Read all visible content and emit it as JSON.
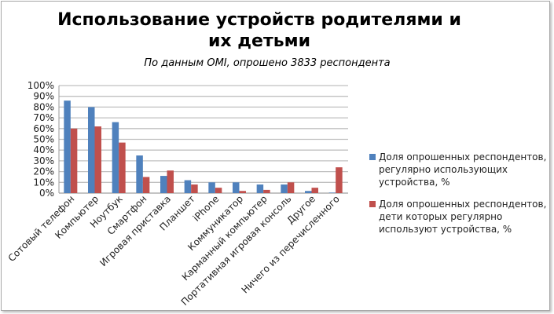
{
  "chart_data": {
    "type": "bar",
    "title": "Использование устройств родителями и их детьми",
    "subtitle": "По данным OMI, опрошено 3833 респондента",
    "categories": [
      "Сотовый телефон",
      "Компьютер",
      "Ноутбук",
      "Смартфон",
      "Игровая приставка",
      "Планшет",
      "iPhone",
      "Коммуникатор",
      "Карманный компьютер",
      "Портативная игровая консоль",
      "Другое",
      "Ничего из перечисленного"
    ],
    "series": [
      {
        "name": "Доля опрошенных респондентов, регулярно использующих устройства, %",
        "color": "#4f81bd",
        "values": [
          86,
          80,
          66,
          35,
          16,
          12,
          10,
          10,
          8,
          8,
          2,
          0.5
        ]
      },
      {
        "name": "Доля опрошенных респондентов, дети которых регулярно используют устройства, %",
        "color": "#c0504d",
        "values": [
          60,
          62,
          47,
          15,
          21,
          8,
          5,
          2,
          3,
          10,
          5,
          24
        ]
      }
    ],
    "yticks": [
      "0%",
      "10%",
      "20%",
      "30%",
      "40%",
      "50%",
      "60%",
      "70%",
      "80%",
      "90%",
      "100%"
    ],
    "ylim": [
      0,
      100
    ],
    "grid": true,
    "legend": "right"
  }
}
